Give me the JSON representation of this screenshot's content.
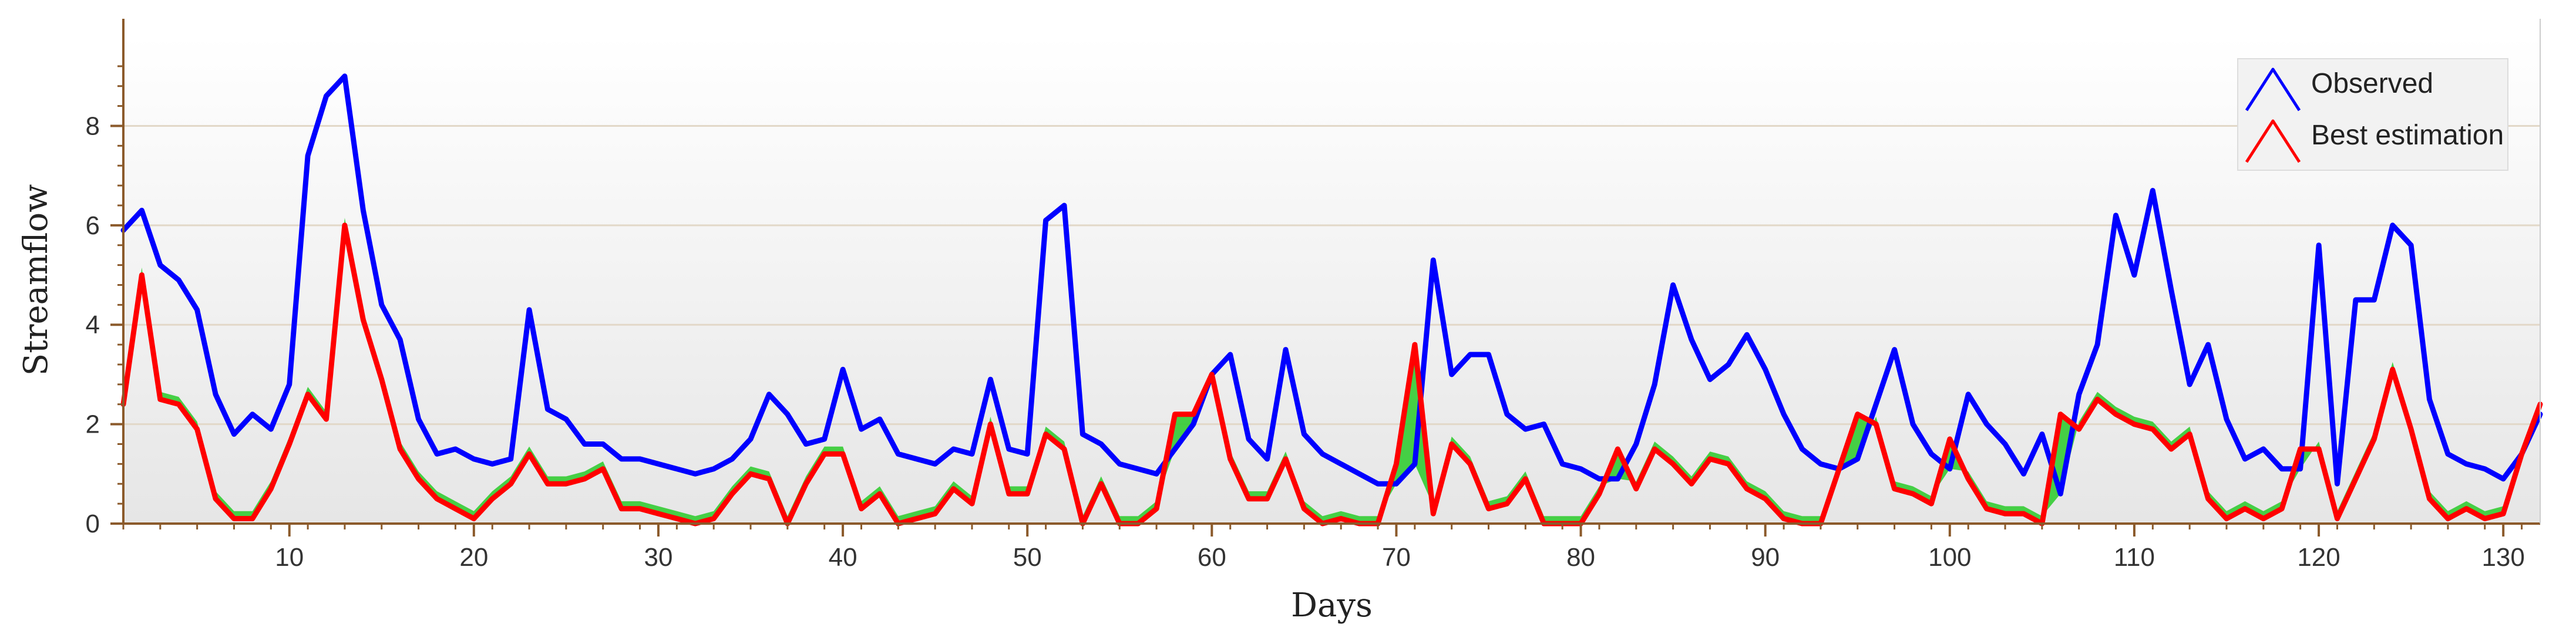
{
  "chart_data": {
    "type": "line",
    "title": "",
    "xlabel": "Days",
    "ylabel": "Streamflow",
    "xlim": [
      1,
      132
    ],
    "ylim": [
      0,
      9.8
    ],
    "x_ticks": [
      10,
      20,
      30,
      40,
      50,
      60,
      70,
      80,
      90,
      100,
      110,
      120,
      130
    ],
    "y_ticks": [
      0,
      2,
      4,
      6,
      8
    ],
    "grid": "horizontal",
    "legend_position": "top-right",
    "x": [
      1,
      2,
      3,
      4,
      5,
      6,
      7,
      8,
      9,
      10,
      11,
      12,
      13,
      14,
      15,
      16,
      17,
      18,
      19,
      20,
      21,
      22,
      23,
      24,
      25,
      26,
      27,
      28,
      29,
      30,
      31,
      32,
      33,
      34,
      35,
      36,
      37,
      38,
      39,
      40,
      41,
      42,
      43,
      44,
      45,
      46,
      47,
      48,
      49,
      50,
      51,
      52,
      53,
      54,
      55,
      56,
      57,
      58,
      59,
      60,
      61,
      62,
      63,
      64,
      65,
      66,
      67,
      68,
      69,
      70,
      71,
      72,
      73,
      74,
      75,
      76,
      77,
      78,
      79,
      80,
      81,
      82,
      83,
      84,
      85,
      86,
      87,
      88,
      89,
      90,
      91,
      92,
      93,
      94,
      95,
      96,
      97,
      98,
      99,
      100,
      101,
      102,
      103,
      104,
      105,
      106,
      107,
      108,
      109,
      110,
      111,
      112,
      113,
      114,
      115,
      116,
      117,
      118,
      119,
      120,
      121,
      122,
      123,
      124,
      125,
      126,
      127,
      128,
      129,
      130,
      131,
      132
    ],
    "series": [
      {
        "name": "Observed",
        "color": "#0000ff",
        "values": [
          5.9,
          6.3,
          5.2,
          4.9,
          4.3,
          2.6,
          1.8,
          2.2,
          1.9,
          2.8,
          7.4,
          8.6,
          9.0,
          6.3,
          4.4,
          3.7,
          2.1,
          1.4,
          1.5,
          1.3,
          1.2,
          1.3,
          4.3,
          2.3,
          2.1,
          1.6,
          1.6,
          1.3,
          1.3,
          1.2,
          1.1,
          1.0,
          1.1,
          1.3,
          1.7,
          2.6,
          2.2,
          1.6,
          1.7,
          3.1,
          1.9,
          2.1,
          1.4,
          1.3,
          1.2,
          1.5,
          1.4,
          2.9,
          1.5,
          1.4,
          6.1,
          6.4,
          1.8,
          1.6,
          1.2,
          1.1,
          1.0,
          1.5,
          2.0,
          3.0,
          3.4,
          1.7,
          1.3,
          3.5,
          1.8,
          1.4,
          1.2,
          1.0,
          0.8,
          0.8,
          1.2,
          5.3,
          3.0,
          3.4,
          3.4,
          2.2,
          1.9,
          2.0,
          1.2,
          1.1,
          0.9,
          0.9,
          1.6,
          2.8,
          4.8,
          3.7,
          2.9,
          3.2,
          3.8,
          3.1,
          2.2,
          1.5,
          1.2,
          1.1,
          1.3,
          2.4,
          3.5,
          2.0,
          1.4,
          1.1,
          2.6,
          2.0,
          1.6,
          1.0,
          1.8,
          0.6,
          2.6,
          3.6,
          6.2,
          5.0,
          6.7,
          4.7,
          2.8,
          3.6,
          2.1,
          1.3,
          1.5,
          1.1,
          1.1,
          5.6,
          0.8,
          4.5,
          4.5,
          6.0,
          5.6,
          2.5,
          1.4,
          1.2,
          1.1,
          0.9,
          1.4,
          2.2
        ]
      },
      {
        "name": "Best estimation",
        "color": "#ff0000",
        "values": [
          2.4,
          5.0,
          2.5,
          2.4,
          1.9,
          0.5,
          0.1,
          0.1,
          0.7,
          1.6,
          2.6,
          2.1,
          6.0,
          4.1,
          2.9,
          1.5,
          0.9,
          0.5,
          0.3,
          0.1,
          0.5,
          0.8,
          1.4,
          0.8,
          0.8,
          0.9,
          1.1,
          0.3,
          0.3,
          0.2,
          0.1,
          0.0,
          0.1,
          0.6,
          1.0,
          0.9,
          0.0,
          0.8,
          1.4,
          1.4,
          0.3,
          0.6,
          0.0,
          0.1,
          0.2,
          0.7,
          0.4,
          2.0,
          0.6,
          0.6,
          1.8,
          1.5,
          0.0,
          0.8,
          0.0,
          0.0,
          0.3,
          2.2,
          2.2,
          3.0,
          1.3,
          0.5,
          0.5,
          1.3,
          0.3,
          0.0,
          0.1,
          0.0,
          0.0,
          1.2,
          3.6,
          0.2,
          1.6,
          1.2,
          0.3,
          0.4,
          0.9,
          0.0,
          0.0,
          0.0,
          0.6,
          1.5,
          0.7,
          1.5,
          1.2,
          0.8,
          1.3,
          1.2,
          0.7,
          0.5,
          0.1,
          0.0,
          0.0,
          1.1,
          2.2,
          2.0,
          0.7,
          0.6,
          0.4,
          1.7,
          0.9,
          0.3,
          0.2,
          0.2,
          0.0,
          2.2,
          1.9,
          2.5,
          2.2,
          2.0,
          1.9,
          1.5,
          1.8,
          0.5,
          0.1,
          0.3,
          0.1,
          0.3,
          1.5,
          1.5,
          0.1,
          0.9,
          1.7,
          3.1,
          1.9,
          0.5,
          0.1,
          0.3,
          0.1,
          0.2,
          1.4,
          2.4
        ]
      }
    ]
  },
  "legend": {
    "items": [
      {
        "label": "Observed",
        "color": "#0000ff"
      },
      {
        "label": "Best estimation",
        "color": "#ff0000"
      }
    ]
  },
  "colors": {
    "diff_fill": "#33cc33",
    "axis": "#8b5a2b",
    "grid": "#e2d8c8"
  }
}
